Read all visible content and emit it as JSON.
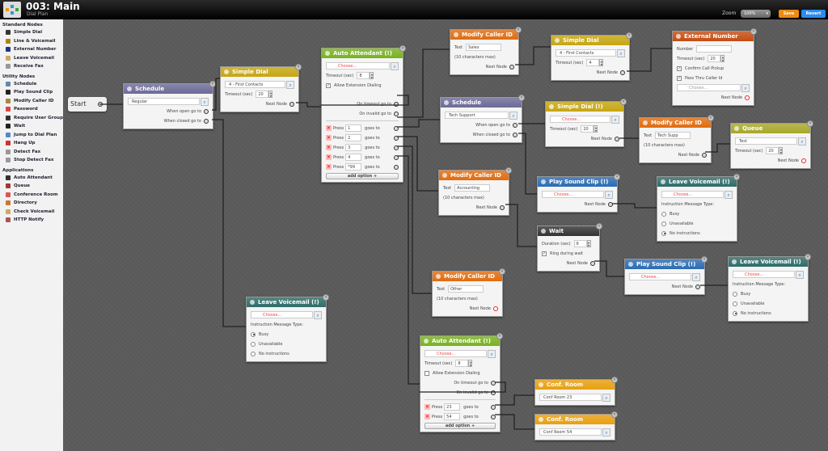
{
  "header": {
    "title": "003: Main",
    "subtitle": "Dial Plan",
    "zoom_label": "Zoom",
    "zoom_value": "100%",
    "save_label": "Save",
    "revert_label": "Revert"
  },
  "sidebar": {
    "sections": [
      {
        "title": "Standard Nodes",
        "items": [
          {
            "label": "Simple Dial",
            "icon": "phone-icon",
            "color": "#333"
          },
          {
            "label": "Line & Voicemail",
            "icon": "line-voicemail-icon",
            "color": "#a80"
          },
          {
            "label": "External Number",
            "icon": "globe-icon",
            "color": "#238"
          },
          {
            "label": "Leave Voicemail",
            "icon": "voicemail-icon",
            "color": "#ca6"
          },
          {
            "label": "Receive Fax",
            "icon": "fax-icon",
            "color": "#999"
          }
        ]
      },
      {
        "title": "Utility Nodes",
        "items": [
          {
            "label": "Schedule",
            "icon": "clock-icon",
            "color": "#68a"
          },
          {
            "label": "Play Sound Clip",
            "icon": "speaker-icon",
            "color": "#222"
          },
          {
            "label": "Modify Caller ID",
            "icon": "caller-id-icon",
            "color": "#a84"
          },
          {
            "label": "Password",
            "icon": "lock-icon",
            "color": "#d44"
          },
          {
            "label": "Require User Group",
            "icon": "group-icon",
            "color": "#333"
          },
          {
            "label": "Wait",
            "icon": "bomb-icon",
            "color": "#222"
          },
          {
            "label": "Jump to Dial Plan",
            "icon": "jump-icon",
            "color": "#58c"
          },
          {
            "label": "Hang Up",
            "icon": "hang-up-icon",
            "color": "#c33"
          },
          {
            "label": "Detect Fax",
            "icon": "fax-icon",
            "color": "#999"
          },
          {
            "label": "Stop Detect Fax",
            "icon": "fax-icon",
            "color": "#999"
          }
        ]
      },
      {
        "title": "Applications",
        "items": [
          {
            "label": "Auto Attendant",
            "icon": "auto-attendant-icon",
            "color": "#333"
          },
          {
            "label": "Queue",
            "icon": "queue-icon",
            "color": "#a33"
          },
          {
            "label": "Conference Room",
            "icon": "conference-icon",
            "color": "#d55"
          },
          {
            "label": "Directory",
            "icon": "directory-icon",
            "color": "#c73"
          },
          {
            "label": "Check Voicemail",
            "icon": "voicemail-icon",
            "color": "#ca6"
          },
          {
            "label": "HTTP Notify",
            "icon": "http-icon",
            "color": "#a55"
          }
        ]
      }
    ]
  },
  "canvas": {
    "start_label": "Start",
    "nodes": [
      {
        "id": "sched1",
        "title": "Schedule",
        "color": "#6c6a98",
        "rows": [
          {
            "t": "sel",
            "v": "Regular"
          },
          {
            "t": "port",
            "l": "When open go to"
          },
          {
            "t": "port",
            "l": "When closed go to"
          }
        ]
      },
      {
        "id": "sd1",
        "title": "Simple Dial",
        "color": "#c6a612",
        "rows": [
          {
            "t": "sel",
            "v": "4 - First Contacts"
          },
          {
            "t": "stepper",
            "l": "Timeout (sec)",
            "v": "20"
          },
          {
            "t": "port",
            "l": "Next Node"
          }
        ]
      },
      {
        "id": "aa1",
        "title": "Auto Attendant (!)",
        "color": "#78b21e",
        "rows": [
          {
            "t": "sel",
            "ph": "Choose..."
          },
          {
            "t": "stepper",
            "l": "Timeout (sec)",
            "v": "8"
          },
          {
            "t": "chk",
            "l": "Allow Extension Dialing",
            "on": true
          },
          {
            "t": "gap"
          },
          {
            "t": "port",
            "l": "On timeout go to"
          },
          {
            "t": "port",
            "l": "On invalid go to"
          },
          {
            "t": "hr"
          },
          {
            "t": "opt",
            "l": "Press",
            "v": "1",
            "g": "goes to"
          },
          {
            "t": "opt",
            "l": "Press",
            "v": "2",
            "g": "goes to"
          },
          {
            "t": "opt",
            "l": "Press",
            "v": "3",
            "g": "goes to"
          },
          {
            "t": "opt",
            "l": "Press",
            "v": "4",
            "g": "goes to"
          },
          {
            "t": "opt",
            "l": "Press",
            "v": "*99",
            "g": "goes to"
          },
          {
            "t": "add",
            "l": "add option +"
          }
        ]
      },
      {
        "id": "mc1",
        "title": "Modify Caller ID",
        "color": "#e06c10",
        "rows": [
          {
            "t": "field",
            "l": "Text",
            "v": "Sales"
          },
          {
            "t": "note",
            "l": "(10 characters max)"
          },
          {
            "t": "port",
            "l": "Next Node"
          }
        ]
      },
      {
        "id": "sd2",
        "title": "Simple Dial",
        "color": "#c6a612",
        "rows": [
          {
            "t": "sel",
            "v": "4 - First Contacts"
          },
          {
            "t": "stepper",
            "l": "Timeout (sec)",
            "v": "4"
          },
          {
            "t": "port",
            "l": "Next Node"
          }
        ]
      },
      {
        "id": "ext",
        "title": "External Number",
        "color": "#c44c12",
        "rows": [
          {
            "t": "field",
            "l": "Number",
            "v": ""
          },
          {
            "t": "stepper",
            "l": "Timeout (sec)",
            "v": "20"
          },
          {
            "t": "chk",
            "l": "Confirm Call Pickup",
            "on": true
          },
          {
            "t": "chk",
            "l": "Pass Thru Caller Id",
            "on": true
          },
          {
            "t": "sel",
            "ph": "Choose...",
            "grey": true
          },
          {
            "t": "end",
            "l": "Next Node"
          }
        ]
      },
      {
        "id": "sched2",
        "title": "Schedule",
        "color": "#6c6a98",
        "rows": [
          {
            "t": "sel",
            "v": "Tech Support"
          },
          {
            "t": "port",
            "l": "When open go to"
          },
          {
            "t": "port",
            "l": "When closed go to"
          }
        ]
      },
      {
        "id": "sd3",
        "title": "Simple Dial (!)",
        "color": "#c6a612",
        "rows": [
          {
            "t": "sel",
            "ph": "Choose..."
          },
          {
            "t": "stepper",
            "l": "Timeout (sec)",
            "v": "20"
          },
          {
            "t": "port",
            "l": "Next Node"
          }
        ]
      },
      {
        "id": "mc2",
        "title": "Modify Caller ID",
        "color": "#e06c10",
        "rows": [
          {
            "t": "field",
            "l": "Text",
            "v": "Tech Supp"
          },
          {
            "t": "note",
            "l": "(10 characters max)"
          },
          {
            "t": "port",
            "l": "Next Node"
          }
        ]
      },
      {
        "id": "queue",
        "title": "Queue",
        "color": "#a8a82a",
        "rows": [
          {
            "t": "sel",
            "v": "Test"
          },
          {
            "t": "stepper",
            "l": "Timeout (sec)",
            "v": "20"
          },
          {
            "t": "end",
            "l": "Next Node"
          }
        ]
      },
      {
        "id": "mc3",
        "title": "Modify Caller ID",
        "color": "#e06c10",
        "rows": [
          {
            "t": "field",
            "l": "Text",
            "v": "Accounting"
          },
          {
            "t": "note",
            "l": "(10 characters max)"
          },
          {
            "t": "port",
            "l": "Next Node"
          }
        ]
      },
      {
        "id": "ps1",
        "title": "Play Sound Clip (!)",
        "color": "#2a6cb2",
        "rows": [
          {
            "t": "sel",
            "ph": "Choose..."
          },
          {
            "t": "port",
            "l": "Next Node"
          }
        ]
      },
      {
        "id": "lv1",
        "title": "Leave Voicemail (!)",
        "color": "#2e6c68",
        "rows": [
          {
            "t": "sel",
            "ph": "Choose..."
          },
          {
            "t": "note",
            "l": "Instruction Message Type:"
          },
          {
            "t": "radio",
            "l": "Busy"
          },
          {
            "t": "radio",
            "l": "Unavailable"
          },
          {
            "t": "radio",
            "l": "No instructions",
            "on": true
          }
        ]
      },
      {
        "id": "wait",
        "title": "Wait",
        "color": "#333333",
        "rows": [
          {
            "t": "stepper",
            "l": "Duration (sec)",
            "v": "6"
          },
          {
            "t": "chk",
            "l": "Ring during wait",
            "on": true
          },
          {
            "t": "port",
            "l": "Next Node"
          }
        ]
      },
      {
        "id": "ps2",
        "title": "Play Sound Clip (!)",
        "color": "#2a6cb2",
        "rows": [
          {
            "t": "sel",
            "ph": "Choose..."
          },
          {
            "t": "port",
            "l": "Next Node"
          }
        ]
      },
      {
        "id": "lv2",
        "title": "Leave Voicemail (!)",
        "color": "#2e6c68",
        "rows": [
          {
            "t": "sel",
            "ph": "Choose..."
          },
          {
            "t": "note",
            "l": "Instruction Message Type:"
          },
          {
            "t": "radio",
            "l": "Busy"
          },
          {
            "t": "radio",
            "l": "Unavailable"
          },
          {
            "t": "radio",
            "l": "No instructions",
            "on": true
          }
        ]
      },
      {
        "id": "mc4",
        "title": "Modify Caller ID",
        "color": "#e06c10",
        "rows": [
          {
            "t": "field",
            "l": "Text",
            "v": "Other"
          },
          {
            "t": "note",
            "l": "(10 characters max)"
          },
          {
            "t": "end",
            "l": "Next Node"
          }
        ]
      },
      {
        "id": "lv3",
        "title": "Leave Voicemail (!)",
        "color": "#2e6c68",
        "rows": [
          {
            "t": "sel",
            "ph": "Choose..."
          },
          {
            "t": "note",
            "l": "Instruction Message Type:"
          },
          {
            "t": "radio",
            "l": "Busy",
            "on": true
          },
          {
            "t": "radio",
            "l": "Unavailable"
          },
          {
            "t": "radio",
            "l": "No instructions"
          }
        ]
      },
      {
        "id": "aa2",
        "title": "Auto Attendant (!)",
        "color": "#78b21e",
        "rows": [
          {
            "t": "sel",
            "ph": "Choose..."
          },
          {
            "t": "stepper",
            "l": "Timeout (sec)",
            "v": "8"
          },
          {
            "t": "chk",
            "l": "Allow Extension Dialing",
            "on": false
          },
          {
            "t": "port",
            "l": "On timeout go to"
          },
          {
            "t": "port",
            "l": "On invalid go to"
          },
          {
            "t": "hr"
          },
          {
            "t": "opt",
            "l": "Press",
            "v": "23",
            "g": "goes to"
          },
          {
            "t": "opt",
            "l": "Press",
            "v": "54",
            "g": "goes to"
          },
          {
            "t": "add",
            "l": "add option +"
          }
        ]
      },
      {
        "id": "conf1",
        "title": "Conf. Room",
        "color": "#e8a010",
        "rows": [
          {
            "t": "sel",
            "v": "Conf Room 23"
          }
        ]
      },
      {
        "id": "conf2",
        "title": "Conf. Room",
        "color": "#e8a010",
        "rows": [
          {
            "t": "sel",
            "v": "Conf Room 54"
          }
        ]
      }
    ]
  }
}
